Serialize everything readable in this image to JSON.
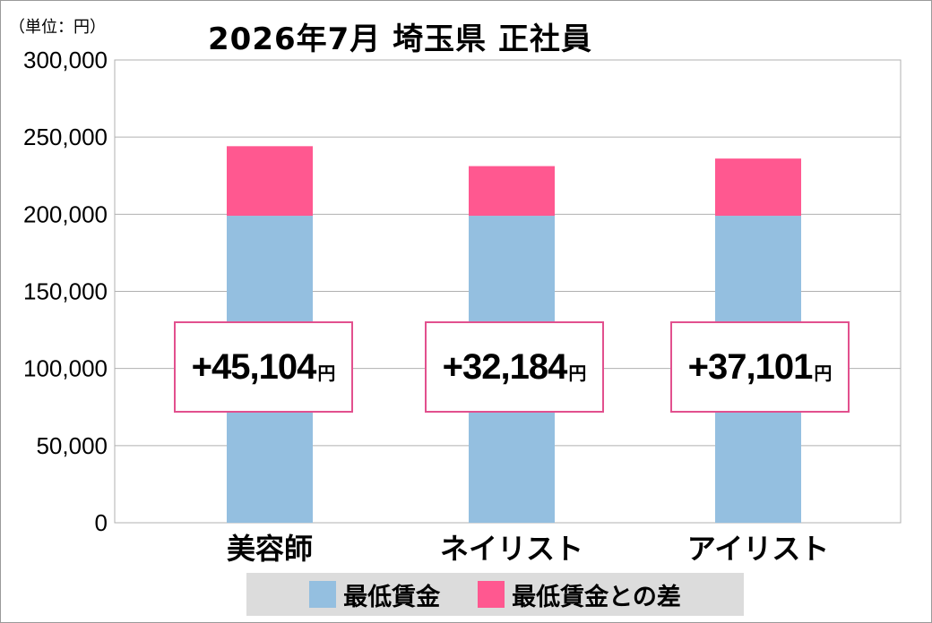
{
  "unit_label": "（単位：円）",
  "chart_data": {
    "type": "bar",
    "stacked": true,
    "title": "2026年7月 埼玉県 正社員",
    "categories": [
      "美容師",
      "ネイリスト",
      "アイリスト"
    ],
    "series": [
      {
        "name": "最低賃金",
        "color": "#94bfe0",
        "values": [
          199000,
          199000,
          199000
        ]
      },
      {
        "name": "最低賃金との差",
        "color": "#ff5890",
        "values": [
          45104,
          32184,
          37101
        ]
      }
    ],
    "difference_labels": [
      "+45,104",
      "+32,184",
      "+37,101"
    ],
    "difference_unit": "円",
    "ylim": [
      0,
      300000
    ],
    "yticks": [
      0,
      50000,
      100000,
      150000,
      200000,
      250000,
      300000
    ],
    "ytick_labels": [
      "0",
      "50,000",
      "100,000",
      "150,000",
      "200,000",
      "250,000",
      "300,000"
    ],
    "grid": true,
    "legend_position": "bottom"
  }
}
